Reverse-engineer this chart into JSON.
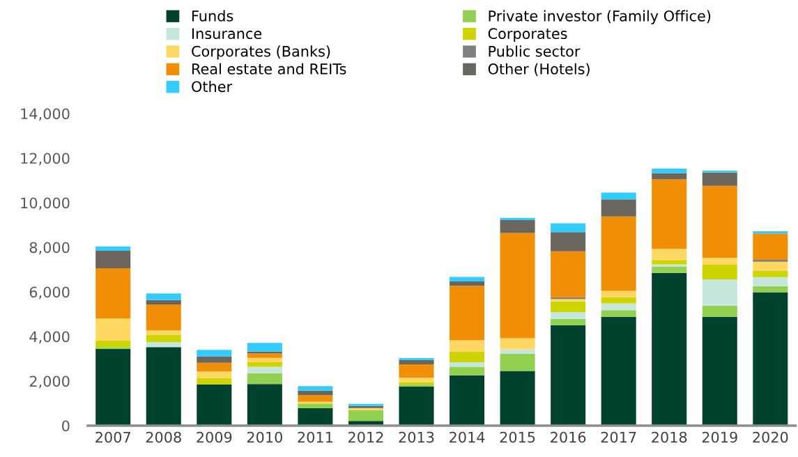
{
  "chart_data": {
    "type": "bar",
    "stacked": true,
    "categories": [
      "2007",
      "2008",
      "2009",
      "2010",
      "2011",
      "2012",
      "2013",
      "2014",
      "2015",
      "2016",
      "2017",
      "2018",
      "2019",
      "2020"
    ],
    "series": [
      {
        "name": "Funds",
        "color": "#01422f",
        "values": [
          3440,
          3520,
          1850,
          1870,
          790,
          210,
          1760,
          2260,
          2450,
          4510,
          4880,
          6850,
          4880,
          5980
        ]
      },
      {
        "name": "Private investor (Family Office)",
        "color": "#92d050",
        "values": [
          80,
          0,
          0,
          480,
          200,
          490,
          90,
          380,
          770,
          280,
          300,
          280,
          500,
          280
        ]
      },
      {
        "name": "Insurance",
        "color": "#c5e6dc",
        "values": [
          0,
          230,
          0,
          290,
          0,
          0,
          0,
          200,
          200,
          300,
          300,
          100,
          1180,
          400
        ]
      },
      {
        "name": "Corporates",
        "color": "#cdd400",
        "values": [
          290,
          310,
          290,
          200,
          0,
          0,
          100,
          470,
          0,
          480,
          270,
          200,
          660,
          280
        ]
      },
      {
        "name": "Corporates (Banks)",
        "color": "#ffd763",
        "values": [
          1000,
          210,
          300,
          200,
          80,
          90,
          200,
          520,
          500,
          110,
          300,
          500,
          310,
          410
        ]
      },
      {
        "name": "Public sector",
        "color": "#808080",
        "values": [
          0,
          0,
          0,
          0,
          0,
          0,
          0,
          0,
          0,
          80,
          0,
          0,
          0,
          90
        ]
      },
      {
        "name": "Real estate and REITs",
        "color": "#f08f05",
        "values": [
          2250,
          1170,
          380,
          200,
          300,
          0,
          600,
          2440,
          4720,
          2060,
          3330,
          3120,
          3230,
          1180
        ]
      },
      {
        "name": "Other (Hotels)",
        "color": "#6a665e",
        "values": [
          780,
          190,
          290,
          80,
          200,
          90,
          190,
          200,
          580,
          860,
          770,
          280,
          590,
          0
        ]
      },
      {
        "name": "Other",
        "color": "#33ccff",
        "values": [
          200,
          300,
          290,
          390,
          200,
          100,
          90,
          200,
          100,
          400,
          300,
          200,
          90,
          100
        ]
      }
    ],
    "ylim": [
      0,
      14000
    ],
    "yticks": [
      {
        "value": 0,
        "label": "0"
      },
      {
        "value": 2000,
        "label": "2,000"
      },
      {
        "value": 4000,
        "label": "4,000"
      },
      {
        "value": 6000,
        "label": "6,000"
      },
      {
        "value": 8000,
        "label": "8,000"
      },
      {
        "value": 10000,
        "label": "10,000"
      },
      {
        "value": 12000,
        "label": "12,000"
      },
      {
        "value": 14000,
        "label": "14,000"
      }
    ],
    "grid": false,
    "legend": "top"
  }
}
